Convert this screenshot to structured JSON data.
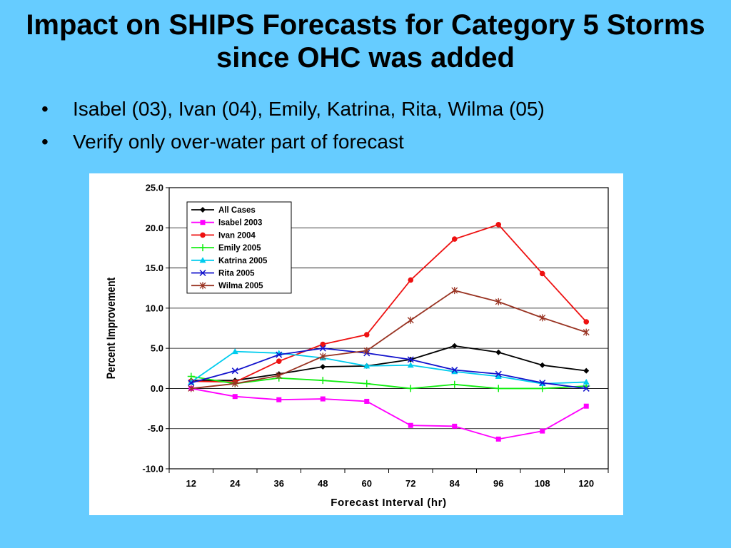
{
  "slide": {
    "title": "Impact on SHIPS Forecasts for Category 5 Storms since OHC was added",
    "bullets": [
      "Isabel (03), Ivan (04), Emily, Katrina, Rita, Wilma (05)",
      "Verify only over-water part of forecast"
    ],
    "bullet_glyph": "•"
  },
  "chart_data": {
    "type": "line",
    "xlabel": "Forecast Interval (hr)",
    "ylabel": "Percent Improvement",
    "categories": [
      "12",
      "24",
      "36",
      "48",
      "60",
      "72",
      "84",
      "96",
      "108",
      "120"
    ],
    "ylim": [
      -10,
      25
    ],
    "yticks": [
      "-10.0",
      "-5.0",
      "0.0",
      "5.0",
      "10.0",
      "15.0",
      "20.0",
      "25.0"
    ],
    "grid": "horizontal",
    "legend_position": "top-left",
    "series": [
      {
        "name": "All Cases",
        "color": "#000000",
        "marker": "diamond",
        "values": [
          1.0,
          1.0,
          1.8,
          2.7,
          2.8,
          3.6,
          5.3,
          4.5,
          2.9,
          2.2
        ]
      },
      {
        "name": "Isabel 2003",
        "color": "#ff00ff",
        "marker": "square",
        "values": [
          0.0,
          -1.0,
          -1.4,
          -1.3,
          -1.6,
          -4.6,
          -4.7,
          -6.3,
          -5.3,
          -2.2
        ]
      },
      {
        "name": "Ivan 2004",
        "color": "#ee1111",
        "marker": "circle",
        "values": [
          0.9,
          0.8,
          3.4,
          5.5,
          6.7,
          13.5,
          18.6,
          20.4,
          14.3,
          8.3
        ]
      },
      {
        "name": "Emily 2005",
        "color": "#11ee11",
        "marker": "plus",
        "values": [
          1.5,
          0.6,
          1.3,
          1.0,
          0.6,
          0.0,
          0.5,
          0.0,
          0.0,
          0.3
        ]
      },
      {
        "name": "Katrina 2005",
        "color": "#00ccee",
        "marker": "triangle",
        "values": [
          0.8,
          4.6,
          4.4,
          3.8,
          2.8,
          2.9,
          2.1,
          1.5,
          0.6,
          0.8
        ]
      },
      {
        "name": "Rita 2005",
        "color": "#1111cc",
        "marker": "x",
        "values": [
          0.7,
          2.2,
          4.2,
          5.0,
          4.4,
          3.6,
          2.3,
          1.8,
          0.7,
          0.0
        ]
      },
      {
        "name": "Wilma 2005",
        "color": "#993322",
        "marker": "star",
        "values": [
          0.0,
          0.6,
          1.6,
          4.0,
          4.7,
          8.5,
          12.2,
          10.8,
          8.8,
          7.0
        ]
      }
    ]
  }
}
